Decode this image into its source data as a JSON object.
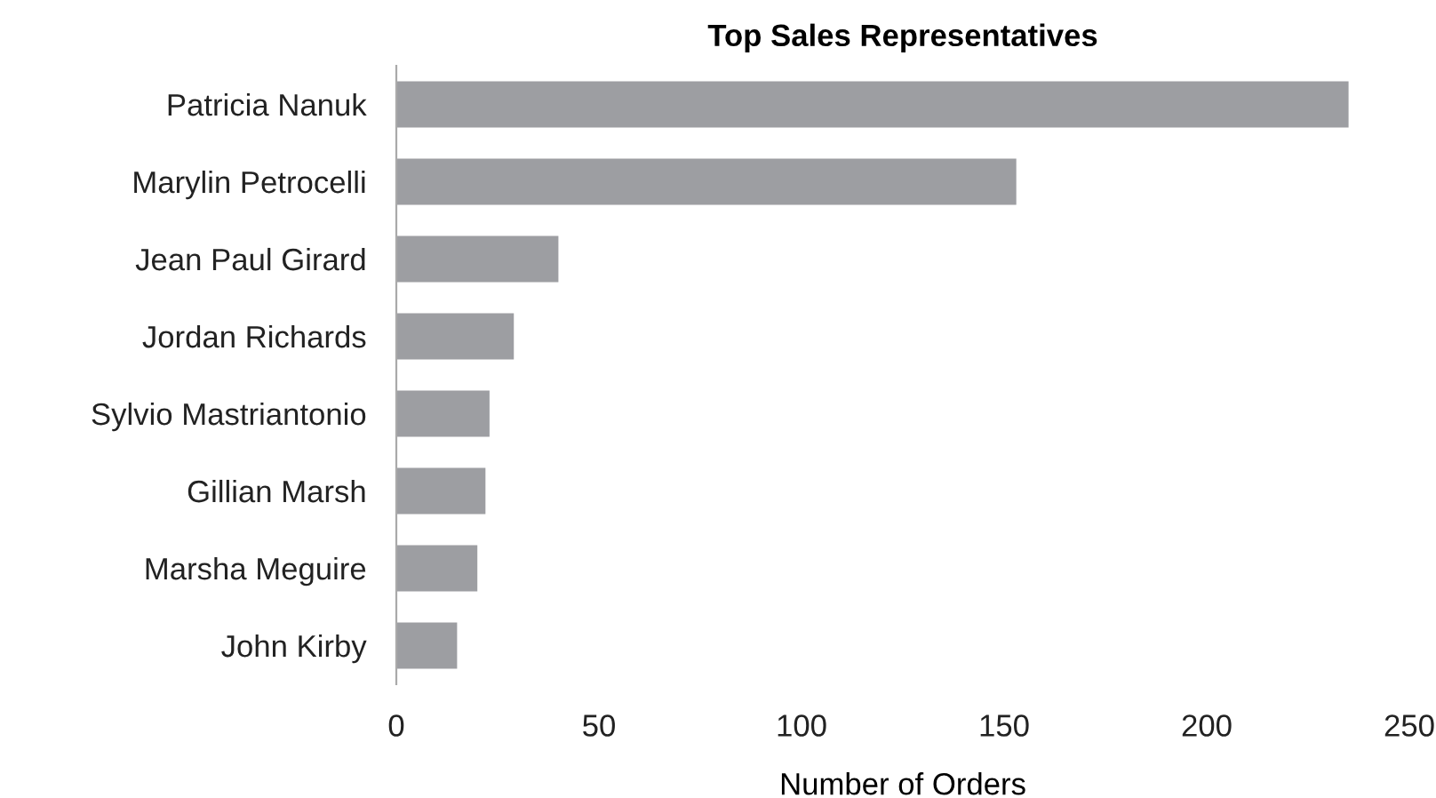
{
  "chart_data": {
    "type": "bar",
    "orientation": "horizontal",
    "title": "Top Sales Representatives",
    "xlabel": "Number of Orders",
    "categories": [
      "Patricia Nanuk",
      "Marylin Petrocelli",
      "Jean Paul Girard",
      "Jordan Richards",
      "Sylvio Mastriantonio",
      "Gillian Marsh",
      "Marsha Meguire",
      "John Kirby"
    ],
    "values": [
      235,
      153,
      40,
      29,
      23,
      22,
      20,
      15
    ],
    "color": "#9d9ea2",
    "xlim": [
      0,
      250
    ],
    "xticks": [
      0,
      50,
      100,
      150,
      200,
      250
    ],
    "grid": false,
    "legend": false
  }
}
